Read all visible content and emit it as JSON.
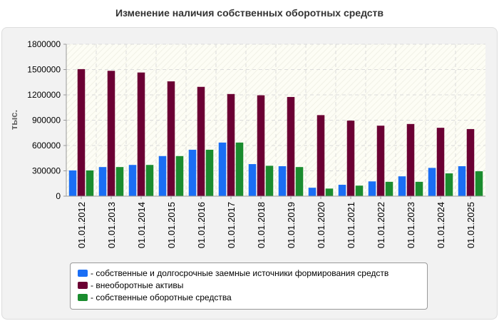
{
  "chart_data": {
    "type": "bar",
    "title": "Изменение наличия собственных оборотных средств",
    "xlabel": "",
    "ylabel": "тыс.",
    "ylim": [
      0,
      1800000
    ],
    "yticks": [
      "0",
      "300000",
      "600000",
      "900000",
      "1200000",
      "1500000",
      "1800000"
    ],
    "ytick_values": [
      0,
      300000,
      600000,
      900000,
      1200000,
      1500000,
      1800000
    ],
    "categories": [
      "01.01.2012",
      "01.01.2013",
      "01.01.2014",
      "01.01.2015",
      "01.01.2016",
      "01.01.2017",
      "01.01.2018",
      "01.01.2019",
      "01.01.2020",
      "01.01.2021",
      "01.01.2022",
      "01.01.2023",
      "01.01.2024",
      "01.01.2025"
    ],
    "series": [
      {
        "name": "- собственные и долгосрочные заемные источники формирования средств",
        "color": "#1a6ef5",
        "values": [
          305000,
          345000,
          370000,
          475000,
          550000,
          635000,
          380000,
          355000,
          100000,
          135000,
          175000,
          235000,
          335000,
          355000
        ]
      },
      {
        "name": "- внеоборотные активы",
        "color": "#6b0033",
        "values": [
          1505000,
          1485000,
          1465000,
          1360000,
          1295000,
          1210000,
          1195000,
          1175000,
          960000,
          895000,
          835000,
          855000,
          810000,
          795000
        ]
      },
      {
        "name": "- собственные оборотные средства",
        "color": "#1a8c2e",
        "values": [
          305000,
          345000,
          370000,
          475000,
          550000,
          635000,
          360000,
          345000,
          90000,
          125000,
          170000,
          170000,
          270000,
          295000
        ]
      }
    ],
    "legend_position": "bottom",
    "grid": true
  }
}
